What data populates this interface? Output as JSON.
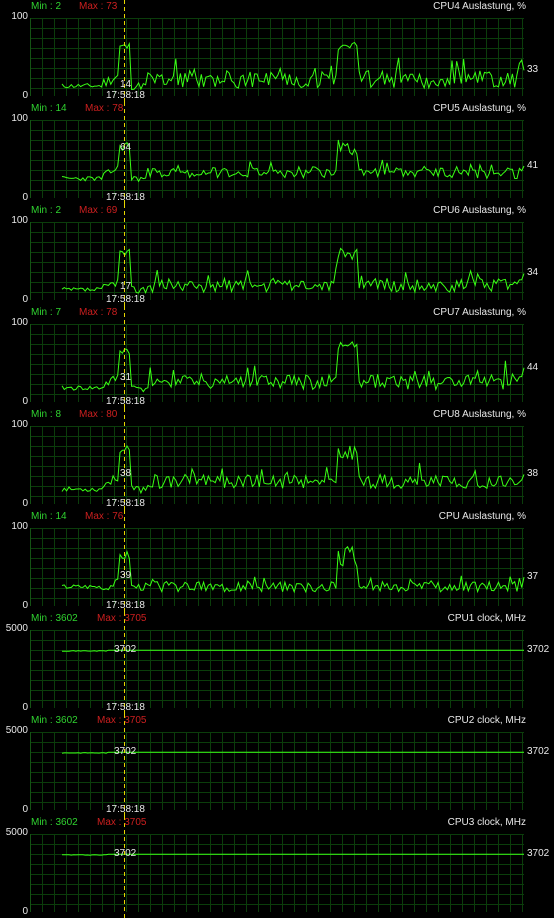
{
  "chart_data": [
    {
      "type": "line",
      "title": "CPU4 Auslastung, %",
      "min_label": "Min : 2",
      "max_label": "Max : 73",
      "ylim": [
        0,
        100
      ],
      "y_top": "100",
      "y_bottom": "0",
      "cursor_value": "14",
      "last_value": "33",
      "cursor_time": "17:58:18",
      "color": "#39ff14",
      "grid": true,
      "mode": "util",
      "base": 10,
      "amp": 23,
      "peak": 57,
      "spike_min": 2,
      "spike_max": 73,
      "end": 33,
      "cur": 14,
      "seed": 11
    },
    {
      "type": "line",
      "title": "CPU5 Auslastung, %",
      "min_label": "Min : 14",
      "max_label": "Max : 78",
      "ylim": [
        0,
        100
      ],
      "y_top": "100",
      "y_bottom": "0",
      "cursor_value": "64",
      "last_value": "41",
      "cursor_time": "17:58:18",
      "color": "#39ff14",
      "grid": true,
      "mode": "util",
      "base": 25,
      "amp": 14,
      "peak": 55,
      "spike_min": 14,
      "spike_max": 78,
      "end": 41,
      "cur": 64,
      "seed": 23
    },
    {
      "type": "line",
      "title": "CPU6 Auslastung, %",
      "min_label": "Min : 2",
      "max_label": "Max : 69",
      "ylim": [
        0,
        100
      ],
      "y_top": "100",
      "y_bottom": "0",
      "cursor_value": "17",
      "last_value": "34",
      "cursor_time": "17:58:18",
      "color": "#39ff14",
      "grid": true,
      "mode": "util",
      "base": 10,
      "amp": 18,
      "peak": 48,
      "spike_min": 2,
      "spike_max": 69,
      "end": 34,
      "cur": 17,
      "seed": 37
    },
    {
      "type": "line",
      "title": "CPU7 Auslastung, %",
      "min_label": "Min : 7",
      "max_label": "Max : 78",
      "ylim": [
        0,
        100
      ],
      "y_top": "100",
      "y_bottom": "0",
      "cursor_value": "31",
      "last_value": "44",
      "cursor_time": "17:58:18",
      "color": "#39ff14",
      "grid": true,
      "mode": "util",
      "base": 16,
      "amp": 20,
      "peak": 52,
      "spike_min": 7,
      "spike_max": 78,
      "end": 44,
      "cur": 31,
      "seed": 41
    },
    {
      "type": "line",
      "title": "CPU8 Auslastung, %",
      "min_label": "Min : 8",
      "max_label": "Max : 80",
      "ylim": [
        0,
        100
      ],
      "y_top": "100",
      "y_bottom": "0",
      "cursor_value": "38",
      "last_value": "38",
      "cursor_time": "17:58:18",
      "color": "#39ff14",
      "grid": true,
      "mode": "util",
      "base": 20,
      "amp": 18,
      "peak": 55,
      "spike_min": 8,
      "spike_max": 80,
      "end": 38,
      "cur": 38,
      "seed": 53
    },
    {
      "type": "line",
      "title": "CPU Auslastung, %",
      "min_label": "Min : 14",
      "max_label": "Max : 76",
      "ylim": [
        0,
        100
      ],
      "y_top": "100",
      "y_bottom": "0",
      "cursor_value": "39",
      "last_value": "37",
      "cursor_time": "17:58:18",
      "color": "#39ff14",
      "grid": true,
      "mode": "util",
      "base": 18,
      "amp": 14,
      "peak": 50,
      "spike_min": 14,
      "spike_max": 76,
      "end": 37,
      "cur": 39,
      "seed": 67
    },
    {
      "type": "line",
      "title": "CPU1 clock, MHz",
      "min_label": "Min : 3602",
      "max_label": "Max : 3705",
      "ylim": [
        0,
        5000
      ],
      "y_top": "5000",
      "y_bottom": "0",
      "cursor_value": "3702",
      "last_value": "3702",
      "cursor_time": "17:58:18",
      "color": "#39ff14",
      "grid": true,
      "mode": "clock",
      "base": 3660,
      "end": 3702,
      "cur": 3702,
      "seed": 71
    },
    {
      "type": "line",
      "title": "CPU2 clock, MHz",
      "min_label": "Min : 3602",
      "max_label": "Max : 3705",
      "ylim": [
        0,
        5000
      ],
      "y_top": "5000",
      "y_bottom": "0",
      "cursor_value": "3702",
      "last_value": "3702",
      "cursor_time": "17:58:18",
      "color": "#39ff14",
      "grid": true,
      "mode": "clock",
      "base": 3660,
      "end": 3702,
      "cur": 3702,
      "seed": 83
    },
    {
      "type": "line",
      "title": "CPU3 clock, MHz",
      "min_label": "Min : 3602",
      "max_label": "Max : 3705",
      "ylim": [
        0,
        5000
      ],
      "y_top": "5000",
      "y_bottom": "0",
      "cursor_value": "3702",
      "last_value": "3702",
      "cursor_time": "",
      "color": "#39ff14",
      "grid": true,
      "mode": "clock",
      "base": 3660,
      "end": 3702,
      "cur": 3702,
      "seed": 97
    }
  ]
}
